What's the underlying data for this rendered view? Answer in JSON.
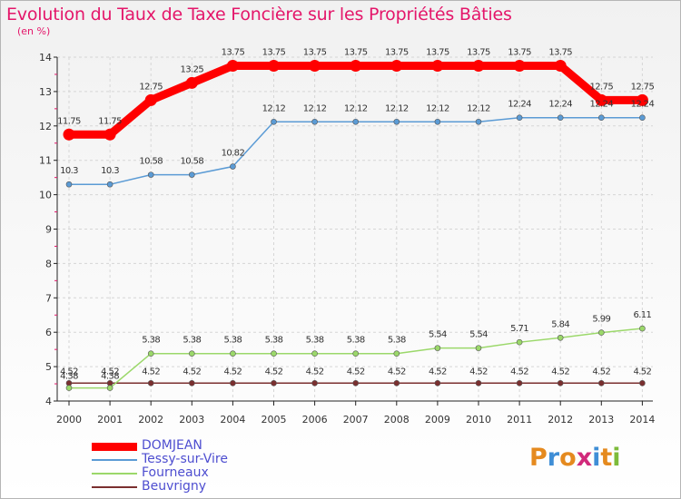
{
  "page": {
    "title": "Evolution du Taux de Taxe Foncière sur les Propriétés Bâties",
    "unit": "(en %)",
    "logo": "Proxiti"
  },
  "colors": {
    "title": "#e4166a",
    "legend_text": "#4e4ed0",
    "grid": "#d6d6d6"
  },
  "chart_data": {
    "type": "line",
    "title": "Evolution du Taux de Taxe Foncière sur les Propriétés Bâties",
    "ylabel": "(en %)",
    "xlabel": "",
    "ylim": [
      4,
      14
    ],
    "yticks": [
      4,
      5,
      6,
      7,
      8,
      9,
      10,
      11,
      12,
      13,
      14
    ],
    "categories": [
      "2000",
      "2001",
      "2002",
      "2003",
      "2004",
      "2005",
      "2006",
      "2007",
      "2008",
      "2009",
      "2010",
      "2011",
      "2012",
      "2013",
      "2014"
    ],
    "legend_position": "bottom-left",
    "series": [
      {
        "name": "DOMJEAN",
        "color": "#ff0000",
        "labels": [
          "11.75",
          "11.75",
          "12.75",
          "13.25",
          "13.75",
          "13.75",
          "13.75",
          "13.75",
          "13.75",
          "13.75",
          "13.75",
          "13.75",
          "13.75",
          "12.75",
          "12.75"
        ],
        "values": [
          11.75,
          11.75,
          12.75,
          13.25,
          13.75,
          13.75,
          13.75,
          13.75,
          13.75,
          13.75,
          13.75,
          13.75,
          13.75,
          12.75,
          12.75
        ]
      },
      {
        "name": "Tessy-sur-Vire",
        "color": "#5b9bd5",
        "labels": [
          "10.3",
          "10.3",
          "10.58",
          "10.58",
          "10.82",
          "12.12",
          "12.12",
          "12.12",
          "12.12",
          "12.12",
          "12.12",
          "12.24",
          "12.24",
          "12.24",
          "12.24"
        ],
        "values": [
          10.3,
          10.3,
          10.58,
          10.58,
          10.82,
          12.12,
          12.12,
          12.12,
          12.12,
          12.12,
          12.12,
          12.24,
          12.24,
          12.24,
          12.24
        ]
      },
      {
        "name": "Fourneaux",
        "color": "#9bd86a",
        "labels": [
          "4.38",
          "4.38",
          "5.38",
          "5.38",
          "5.38",
          "5.38",
          "5.38",
          "5.38",
          "5.38",
          "5.54",
          "5.54",
          "5.71",
          "5.84",
          "5.99",
          "6.11"
        ],
        "values": [
          4.38,
          4.38,
          5.38,
          5.38,
          5.38,
          5.38,
          5.38,
          5.38,
          5.38,
          5.54,
          5.54,
          5.71,
          5.84,
          5.99,
          6.11
        ]
      },
      {
        "name": "Beuvrigny",
        "color": "#7a2f2f",
        "labels": [
          "4.52",
          "4.52",
          "4.52",
          "4.52",
          "4.52",
          "4.52",
          "4.52",
          "4.52",
          "4.52",
          "4.52",
          "4.52",
          "4.52",
          "4.52",
          "4.52",
          "4.52"
        ],
        "values": [
          4.52,
          4.52,
          4.52,
          4.52,
          4.52,
          4.52,
          4.52,
          4.52,
          4.52,
          4.52,
          4.52,
          4.52,
          4.52,
          4.52,
          4.52
        ]
      }
    ]
  }
}
